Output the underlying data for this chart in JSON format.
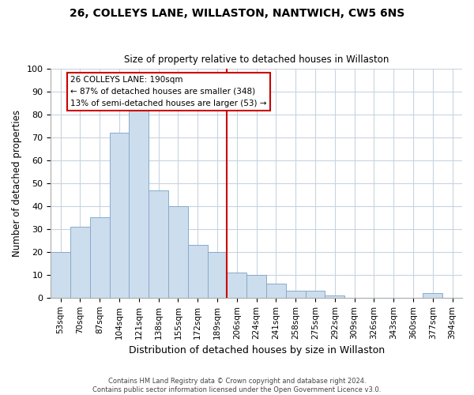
{
  "title1": "26, COLLEYS LANE, WILLASTON, NANTWICH, CW5 6NS",
  "title2": "Size of property relative to detached houses in Willaston",
  "xlabel": "Distribution of detached houses by size in Willaston",
  "ylabel": "Number of detached properties",
  "categories": [
    "53sqm",
    "70sqm",
    "87sqm",
    "104sqm",
    "121sqm",
    "138sqm",
    "155sqm",
    "172sqm",
    "189sqm",
    "206sqm",
    "224sqm",
    "241sqm",
    "258sqm",
    "275sqm",
    "292sqm",
    "309sqm",
    "326sqm",
    "343sqm",
    "360sqm",
    "377sqm",
    "394sqm"
  ],
  "values": [
    20,
    31,
    35,
    72,
    82,
    47,
    40,
    23,
    20,
    11,
    10,
    6,
    3,
    3,
    1,
    0,
    0,
    0,
    0,
    2,
    0
  ],
  "bar_color": "#ccdded",
  "bar_edge_color": "#88aacc",
  "reference_line_index": 8,
  "annotation_title": "26 COLLEYS LANE: 190sqm",
  "annotation_line1": "← 87% of detached houses are smaller (348)",
  "annotation_line2": "13% of semi-detached houses are larger (53) →",
  "annotation_box_color": "#ffffff",
  "annotation_box_edge": "#cc0000",
  "reference_line_color": "#cc0000",
  "footer1": "Contains HM Land Registry data © Crown copyright and database right 2024.",
  "footer2": "Contains public sector information licensed under the Open Government Licence v3.0.",
  "ylim": [
    0,
    100
  ],
  "yticks": [
    0,
    10,
    20,
    30,
    40,
    50,
    60,
    70,
    80,
    90,
    100
  ],
  "bg_color": "#ffffff",
  "plot_bg_color": "#ffffff",
  "grid_color": "#c8d4e0"
}
